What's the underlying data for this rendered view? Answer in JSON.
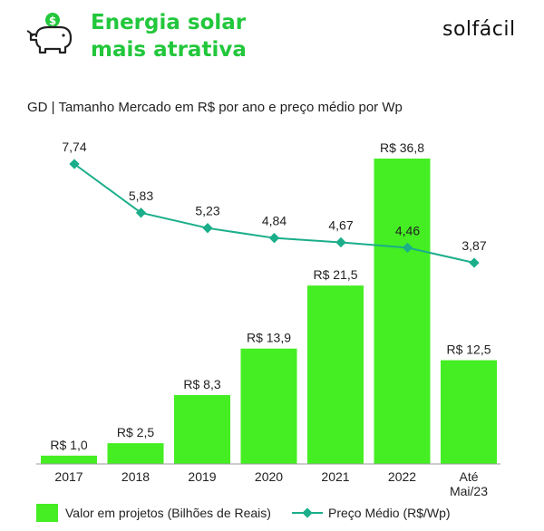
{
  "header": {
    "title_line1": "Energia solar",
    "title_line2": "mais atrativa",
    "brand": "solfácil",
    "icon": "piggy-bank-icon"
  },
  "colors": {
    "accent": "#22c73b",
    "bar": "#44ee22",
    "line": "#1aae8a"
  },
  "chart_data": {
    "type": "bar",
    "title": "GD | Tamanho Mercado em R$  por ano e preço médio por Wp",
    "categories": [
      "2017",
      "2018",
      "2019",
      "2020",
      "2021",
      "2022",
      "Até Mai/23"
    ],
    "series": [
      {
        "name": "Valor em projetos (Bilhões de Reais)",
        "type": "bar",
        "values": [
          1.0,
          2.5,
          8.3,
          13.9,
          21.5,
          36.8,
          12.5
        ],
        "labels": [
          "R$ 1,0",
          "R$ 2,5",
          "R$ 8,3",
          "R$ 13,9",
          "R$ 21,5",
          "R$ 36,8",
          "R$ 12,5"
        ]
      },
      {
        "name": "Preço Médio (R$/Wp)",
        "type": "line",
        "values": [
          7.74,
          5.83,
          5.23,
          4.84,
          4.67,
          4.46,
          3.87
        ],
        "labels": [
          "7,74",
          "5,83",
          "5,23",
          "4,84",
          "4,67",
          "4,46",
          "3,87"
        ]
      }
    ],
    "legend": "bottom",
    "grid": false
  }
}
